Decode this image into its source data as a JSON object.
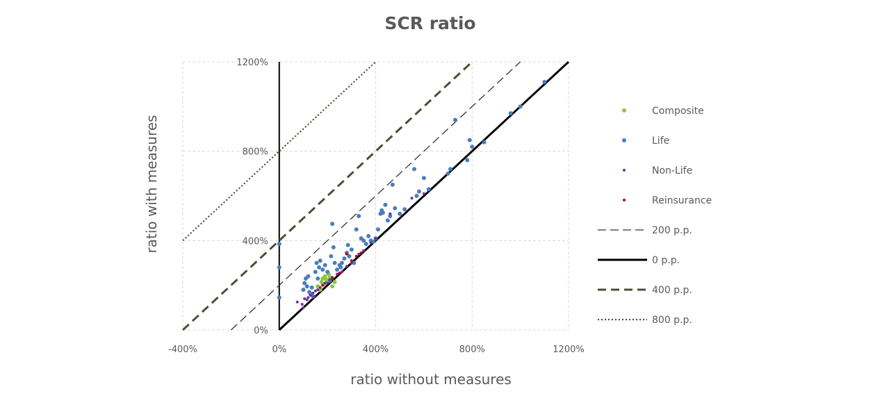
{
  "chart_data": {
    "type": "scatter",
    "title": "SCR ratio",
    "xlabel": "ratio without measures",
    "ylabel": "ratio with measures",
    "xlim": [
      -400,
      1200
    ],
    "ylim": [
      0,
      1200
    ],
    "x_ticks": [
      -400,
      0,
      400,
      800,
      1200
    ],
    "y_ticks": [
      0,
      400,
      800,
      1200
    ],
    "x_tick_labels": [
      "-400%",
      "0%",
      "400%",
      "800%",
      "1200%"
    ],
    "y_tick_labels": [
      "0%",
      "400%",
      "800%",
      "1200%"
    ],
    "grid": true,
    "legend_position": "right",
    "series": [
      {
        "name": "Composite",
        "color": "#8cc63f",
        "marker": "dot",
        "points": [
          [
            160,
            195
          ],
          [
            175,
            215
          ],
          [
            180,
            230
          ],
          [
            190,
            240
          ],
          [
            195,
            225
          ],
          [
            200,
            220
          ],
          [
            205,
            250
          ],
          [
            210,
            235
          ],
          [
            220,
            195
          ],
          [
            230,
            215
          ],
          [
            170,
            180
          ],
          [
            185,
            205
          ]
        ]
      },
      {
        "name": "Life",
        "color": "#4a7ebb",
        "marker": "dot",
        "points": [
          [
            0,
            385
          ],
          [
            0,
            280
          ],
          [
            0,
            145
          ],
          [
            100,
            180
          ],
          [
            105,
            210
          ],
          [
            110,
            230
          ],
          [
            115,
            195
          ],
          [
            120,
            240
          ],
          [
            125,
            170
          ],
          [
            130,
            160
          ],
          [
            135,
            190
          ],
          [
            140,
            150
          ],
          [
            150,
            260
          ],
          [
            155,
            300
          ],
          [
            160,
            230
          ],
          [
            165,
            280
          ],
          [
            170,
            310
          ],
          [
            180,
            270
          ],
          [
            190,
            290
          ],
          [
            200,
            260
          ],
          [
            210,
            220
          ],
          [
            215,
            330
          ],
          [
            220,
            475
          ],
          [
            225,
            370
          ],
          [
            230,
            300
          ],
          [
            240,
            270
          ],
          [
            250,
            290
          ],
          [
            255,
            280
          ],
          [
            260,
            300
          ],
          [
            270,
            320
          ],
          [
            280,
            345
          ],
          [
            285,
            380
          ],
          [
            290,
            330
          ],
          [
            300,
            360
          ],
          [
            310,
            300
          ],
          [
            320,
            450
          ],
          [
            330,
            510
          ],
          [
            340,
            410
          ],
          [
            350,
            400
          ],
          [
            360,
            385
          ],
          [
            370,
            420
          ],
          [
            380,
            400
          ],
          [
            390,
            395
          ],
          [
            400,
            410
          ],
          [
            410,
            450
          ],
          [
            420,
            520
          ],
          [
            425,
            535
          ],
          [
            430,
            525
          ],
          [
            440,
            560
          ],
          [
            450,
            490
          ],
          [
            460,
            510
          ],
          [
            470,
            650
          ],
          [
            480,
            545
          ],
          [
            500,
            520
          ],
          [
            520,
            540
          ],
          [
            560,
            720
          ],
          [
            570,
            600
          ],
          [
            580,
            620
          ],
          [
            600,
            680
          ],
          [
            620,
            630
          ],
          [
            700,
            700
          ],
          [
            710,
            720
          ],
          [
            730,
            940
          ],
          [
            780,
            760
          ],
          [
            790,
            850
          ],
          [
            800,
            820
          ],
          [
            850,
            840
          ],
          [
            960,
            970
          ],
          [
            1000,
            1000
          ],
          [
            1100,
            1110
          ]
        ]
      },
      {
        "name": "Non-Life",
        "color": "#7030a0",
        "marker": "dot",
        "points": [
          [
            75,
            125
          ],
          [
            95,
            115
          ],
          [
            100,
            100
          ],
          [
            105,
            140
          ],
          [
            115,
            135
          ],
          [
            120,
            145
          ],
          [
            130,
            155
          ],
          [
            140,
            165
          ],
          [
            145,
            150
          ],
          [
            150,
            175
          ],
          [
            160,
            180
          ],
          [
            170,
            190
          ],
          [
            180,
            200
          ],
          [
            190,
            210
          ],
          [
            200,
            210
          ],
          [
            210,
            225
          ],
          [
            220,
            230
          ],
          [
            240,
            250
          ],
          [
            260,
            260
          ],
          [
            280,
            285
          ],
          [
            300,
            300
          ],
          [
            330,
            340
          ],
          [
            350,
            355
          ],
          [
            380,
            390
          ],
          [
            400,
            410
          ],
          [
            460,
            520
          ],
          [
            550,
            590
          ],
          [
            600,
            610
          ]
        ]
      },
      {
        "name": "Reinsurance",
        "color": "#c00000",
        "marker": "dot",
        "points": [
          [
            180,
            200
          ],
          [
            220,
            235
          ],
          [
            250,
            255
          ],
          [
            280,
            340
          ],
          [
            300,
            310
          ],
          [
            320,
            330
          ],
          [
            340,
            345
          ]
        ]
      }
    ],
    "reference_lines": [
      {
        "name": "200 p.p.",
        "offset": 200,
        "style": "long-dash",
        "color": "#333333"
      },
      {
        "name": "0 p.p.",
        "offset": 0,
        "style": "solid",
        "color": "#000000"
      },
      {
        "name": "400 p.p.",
        "offset": 400,
        "style": "heavy-dash",
        "color": "#4d4d33"
      },
      {
        "name": "800 p.p.",
        "offset": 800,
        "style": "dotted",
        "color": "#4d4d33"
      }
    ],
    "legend": [
      "Composite",
      "Life",
      "Non-Life",
      "Reinsurance",
      "200 p.p.",
      "0 p.p.",
      "400 p.p.",
      "800 p.p."
    ]
  }
}
